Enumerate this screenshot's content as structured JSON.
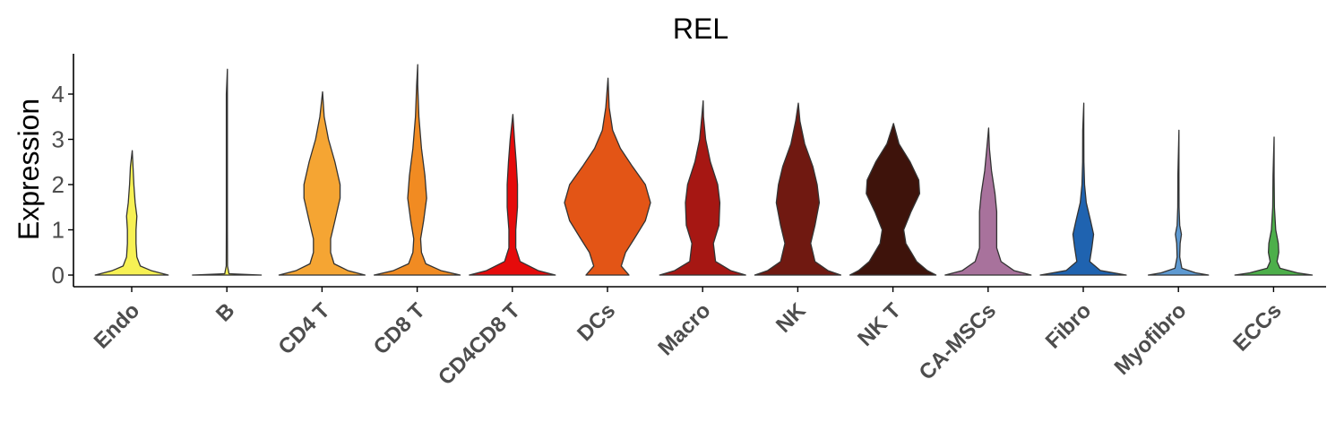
{
  "chart_data": {
    "type": "violin",
    "title": "REL",
    "xlabel": "",
    "ylabel": "Expression",
    "ylim": [
      -0.25,
      4.9
    ],
    "yticks": [
      0,
      1,
      2,
      3,
      4
    ],
    "grid": false,
    "legend": "none",
    "categories": [
      "Endo",
      "B",
      "CD4 T",
      "CD8 T",
      "CD4CD8 T",
      "DCs",
      "Macro",
      "NK",
      "NK T",
      "CA-MSCs",
      "Fibro",
      "Myofibro",
      "ECCs"
    ],
    "series": [
      {
        "category": "Endo",
        "color": "#F7F154",
        "max": 2.75,
        "density": [
          [
            0,
            0.85
          ],
          [
            0.1,
            0.45
          ],
          [
            0.2,
            0.2
          ],
          [
            0.4,
            0.12
          ],
          [
            0.7,
            0.1
          ],
          [
            1.0,
            0.1
          ],
          [
            1.3,
            0.12
          ],
          [
            1.6,
            0.08
          ],
          [
            2.0,
            0.05
          ],
          [
            2.4,
            0.03
          ],
          [
            2.75,
            0
          ]
        ]
      },
      {
        "category": "B",
        "color": "#F7F154",
        "max": 4.55,
        "density": [
          [
            0,
            0.8
          ],
          [
            0.03,
            0.05
          ],
          [
            0.2,
            0.015
          ],
          [
            1.0,
            0.012
          ],
          [
            2.0,
            0.012
          ],
          [
            3.0,
            0.012
          ],
          [
            4.0,
            0.01
          ],
          [
            4.55,
            0
          ]
        ]
      },
      {
        "category": "CD4 T",
        "color": "#F5A533",
        "max": 4.05,
        "density": [
          [
            0,
            1.0
          ],
          [
            0.1,
            0.6
          ],
          [
            0.25,
            0.28
          ],
          [
            0.5,
            0.2
          ],
          [
            0.8,
            0.2
          ],
          [
            1.2,
            0.3
          ],
          [
            1.7,
            0.42
          ],
          [
            2.0,
            0.42
          ],
          [
            2.5,
            0.3
          ],
          [
            3.0,
            0.15
          ],
          [
            3.5,
            0.05
          ],
          [
            4.05,
            0
          ]
        ]
      },
      {
        "category": "CD8 T",
        "color": "#F18B22",
        "max": 4.65,
        "density": [
          [
            0,
            1.0
          ],
          [
            0.1,
            0.55
          ],
          [
            0.25,
            0.2
          ],
          [
            0.5,
            0.1
          ],
          [
            0.8,
            0.08
          ],
          [
            1.2,
            0.15
          ],
          [
            1.7,
            0.22
          ],
          [
            2.2,
            0.18
          ],
          [
            2.8,
            0.1
          ],
          [
            3.5,
            0.04
          ],
          [
            4.2,
            0.01
          ],
          [
            4.65,
            0
          ]
        ]
      },
      {
        "category": "CD4CD8 T",
        "color": "#E50B0B",
        "max": 3.55,
        "density": [
          [
            0,
            1.0
          ],
          [
            0.1,
            0.6
          ],
          [
            0.3,
            0.18
          ],
          [
            0.6,
            0.08
          ],
          [
            1.0,
            0.08
          ],
          [
            1.5,
            0.12
          ],
          [
            2.0,
            0.12
          ],
          [
            2.5,
            0.09
          ],
          [
            3.0,
            0.05
          ],
          [
            3.55,
            0
          ]
        ]
      },
      {
        "category": "DCs",
        "color": "#E35516",
        "max": 4.35,
        "density": [
          [
            0,
            0.5
          ],
          [
            0.2,
            0.32
          ],
          [
            0.5,
            0.42
          ],
          [
            0.8,
            0.62
          ],
          [
            1.2,
            0.88
          ],
          [
            1.6,
            1.0
          ],
          [
            2.0,
            0.88
          ],
          [
            2.4,
            0.58
          ],
          [
            2.8,
            0.3
          ],
          [
            3.2,
            0.12
          ],
          [
            3.7,
            0.04
          ],
          [
            4.35,
            0
          ]
        ]
      },
      {
        "category": "Macro",
        "color": "#A61713",
        "max": 3.85,
        "density": [
          [
            0,
            1.0
          ],
          [
            0.1,
            0.65
          ],
          [
            0.3,
            0.3
          ],
          [
            0.7,
            0.25
          ],
          [
            1.1,
            0.38
          ],
          [
            1.6,
            0.4
          ],
          [
            2.0,
            0.35
          ],
          [
            2.5,
            0.18
          ],
          [
            3.0,
            0.07
          ],
          [
            3.5,
            0.02
          ],
          [
            3.85,
            0
          ]
        ]
      },
      {
        "category": "NK",
        "color": "#701911",
        "max": 3.8,
        "density": [
          [
            0,
            1.0
          ],
          [
            0.1,
            0.7
          ],
          [
            0.3,
            0.4
          ],
          [
            0.7,
            0.3
          ],
          [
            1.1,
            0.4
          ],
          [
            1.6,
            0.5
          ],
          [
            2.0,
            0.45
          ],
          [
            2.4,
            0.35
          ],
          [
            2.9,
            0.16
          ],
          [
            3.4,
            0.05
          ],
          [
            3.8,
            0
          ]
        ]
      },
      {
        "category": "NK T",
        "color": "#3E130B",
        "max": 3.35,
        "density": [
          [
            0,
            1.0
          ],
          [
            0.1,
            0.8
          ],
          [
            0.3,
            0.55
          ],
          [
            0.7,
            0.3
          ],
          [
            1.0,
            0.25
          ],
          [
            1.4,
            0.42
          ],
          [
            1.8,
            0.62
          ],
          [
            2.1,
            0.6
          ],
          [
            2.5,
            0.4
          ],
          [
            2.9,
            0.14
          ],
          [
            3.35,
            0
          ]
        ]
      },
      {
        "category": "CA-MSCs",
        "color": "#A8729C",
        "max": 3.25,
        "density": [
          [
            0,
            1.0
          ],
          [
            0.1,
            0.6
          ],
          [
            0.3,
            0.3
          ],
          [
            0.6,
            0.2
          ],
          [
            1.0,
            0.2
          ],
          [
            1.4,
            0.2
          ],
          [
            1.8,
            0.16
          ],
          [
            2.3,
            0.08
          ],
          [
            2.8,
            0.03
          ],
          [
            3.25,
            0
          ]
        ]
      },
      {
        "category": "Fibro",
        "color": "#1F63B0",
        "max": 3.8,
        "density": [
          [
            0,
            1.0
          ],
          [
            0.1,
            0.4
          ],
          [
            0.3,
            0.15
          ],
          [
            0.6,
            0.2
          ],
          [
            0.9,
            0.24
          ],
          [
            1.2,
            0.17
          ],
          [
            1.6,
            0.07
          ],
          [
            2.0,
            0.03
          ],
          [
            2.5,
            0.015
          ],
          [
            3.2,
            0.01
          ],
          [
            3.8,
            0
          ]
        ]
      },
      {
        "category": "Myofibro",
        "color": "#5E9AD2",
        "max": 3.2,
        "density": [
          [
            0,
            0.7
          ],
          [
            0.05,
            0.4
          ],
          [
            0.15,
            0.08
          ],
          [
            0.4,
            0.03
          ],
          [
            0.7,
            0.04
          ],
          [
            0.9,
            0.07
          ],
          [
            1.1,
            0.03
          ],
          [
            1.5,
            0.015
          ],
          [
            2.2,
            0.01
          ],
          [
            3.2,
            0
          ]
        ]
      },
      {
        "category": "ECCs",
        "color": "#4DAF4A",
        "max": 3.05,
        "density": [
          [
            0,
            0.9
          ],
          [
            0.05,
            0.55
          ],
          [
            0.15,
            0.15
          ],
          [
            0.3,
            0.08
          ],
          [
            0.5,
            0.12
          ],
          [
            0.7,
            0.11
          ],
          [
            1.0,
            0.05
          ],
          [
            1.5,
            0.02
          ],
          [
            2.2,
            0.01
          ],
          [
            3.05,
            0
          ]
        ]
      }
    ]
  }
}
